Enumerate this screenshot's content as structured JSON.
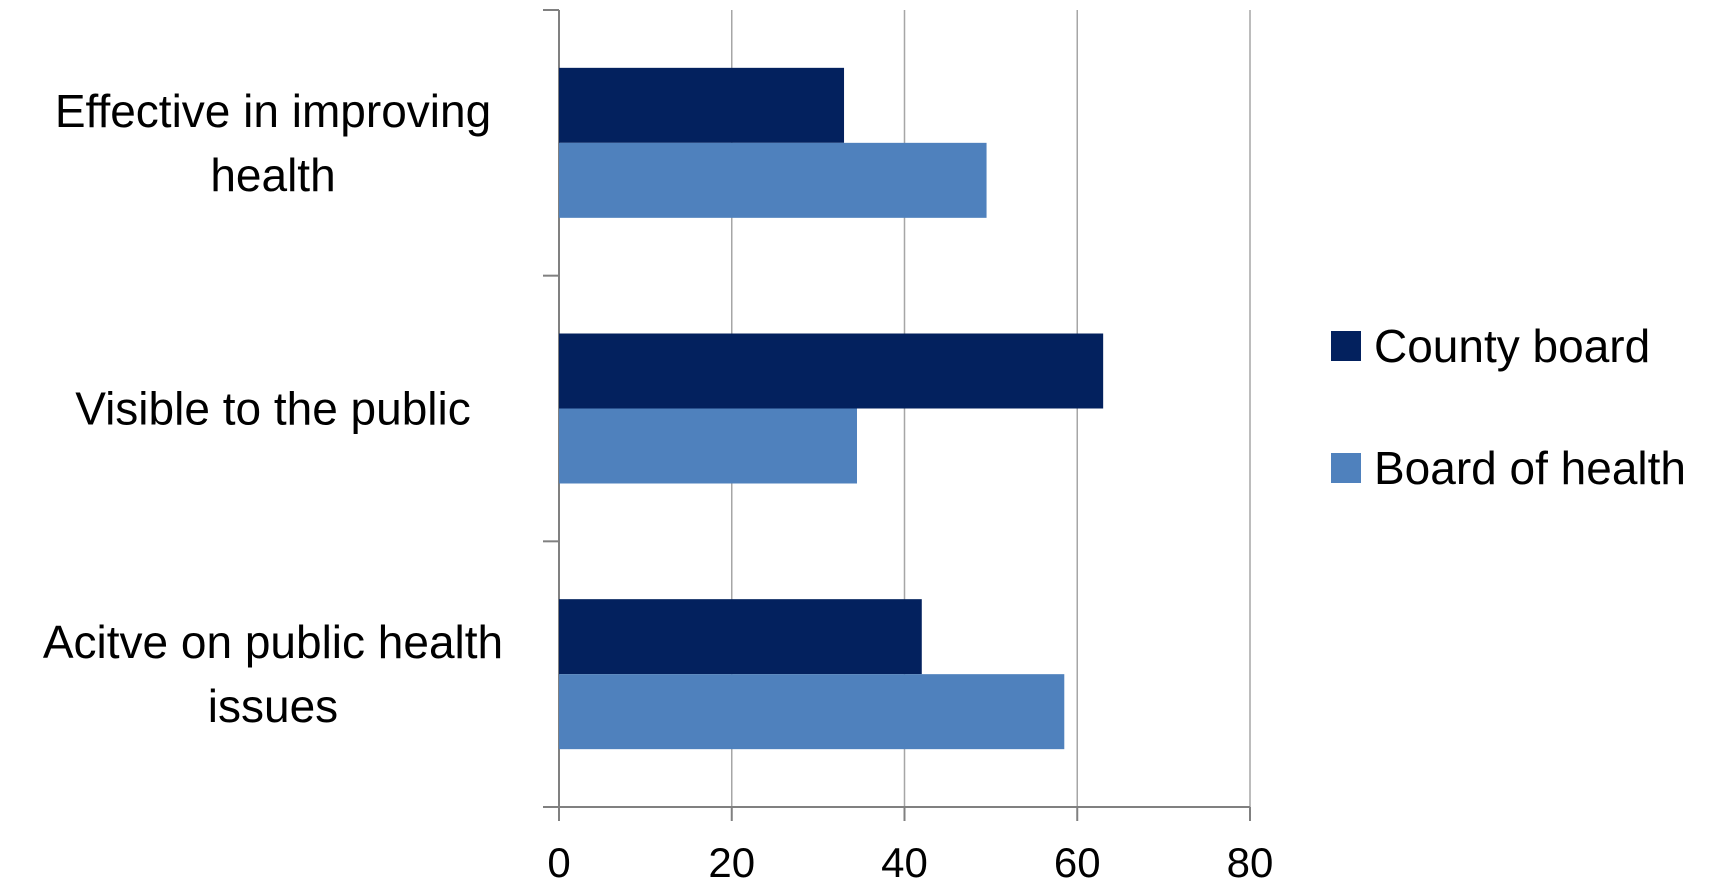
{
  "chart_data": {
    "type": "bar",
    "orientation": "horizontal",
    "categories": [
      [
        "Effective in improving",
        "health"
      ],
      [
        "Visible to the public"
      ],
      [
        "Acitve on public health",
        "issues"
      ]
    ],
    "series": [
      {
        "name": "County board",
        "color": "#03215E",
        "values": [
          33,
          63,
          42
        ]
      },
      {
        "name": "Board of health",
        "color": "#4F81BD",
        "values": [
          49.5,
          34.5,
          58.5
        ]
      }
    ],
    "x_ticks": [
      "0",
      "20",
      "40",
      "60",
      "80"
    ],
    "xlim": [
      0,
      80
    ],
    "grid": true,
    "legend": "right"
  }
}
